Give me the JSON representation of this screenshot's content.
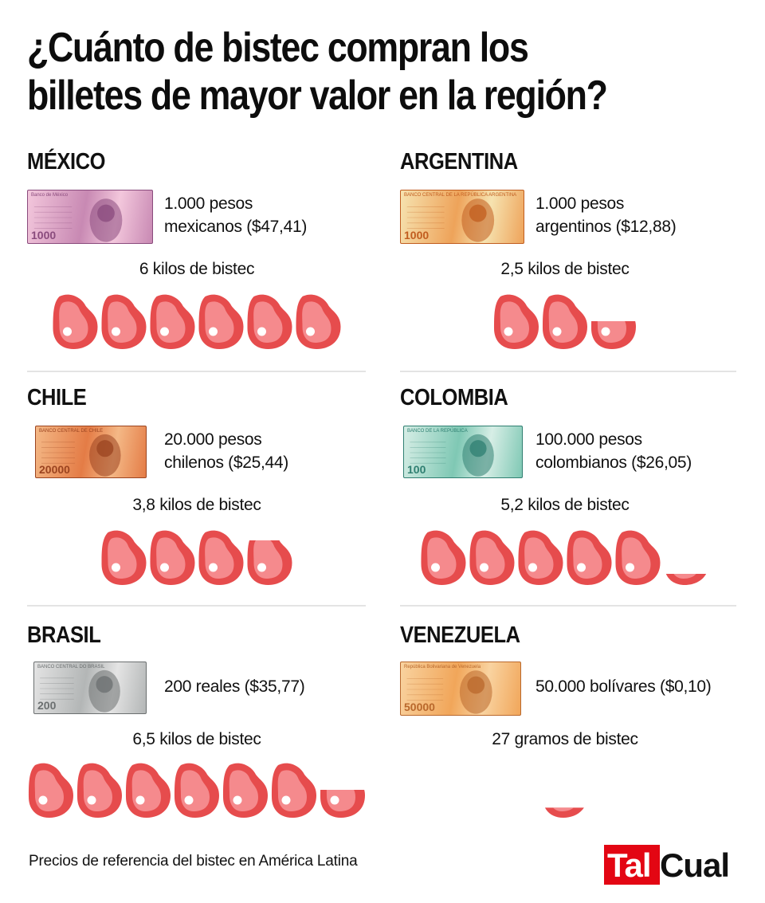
{
  "title_line1": "¿Cuánto de bistec compran los",
  "title_line2": "billetes de mayor valor en la región?",
  "countries": [
    {
      "name": "MÉXICO",
      "line1": "1.000 pesos",
      "line2": "mexicanos ($47,41)",
      "amount": "6 kilos de bistec",
      "kilos": 6,
      "note": {
        "label": "1000",
        "header": "Banco de México",
        "colors": [
          "#f3c7dc",
          "#c889b3",
          "#8a4b7d"
        ]
      }
    },
    {
      "name": "ARGENTINA",
      "line1": "1.000 pesos",
      "line2": "argentinos ($12,88)",
      "amount": "2,5 kilos de bistec",
      "kilos": 2.5,
      "note": {
        "label": "1000",
        "header": "BANCO CENTRAL DE LA REPÚBLICA ARGENTINA",
        "colors": [
          "#f6e3b0",
          "#eea35a",
          "#c15d1f"
        ]
      }
    },
    {
      "name": "CHILE",
      "line1": "20.000 pesos",
      "line2": "chilenos ($25,44)",
      "amount": "3,8 kilos de bistec",
      "kilos": 3.8,
      "note": {
        "label": "20000",
        "header": "BANCO CENTRAL DE CHILE",
        "colors": [
          "#f4b886",
          "#e47c46",
          "#9b4420"
        ]
      }
    },
    {
      "name": "COLOMBIA",
      "line1": "100.000 pesos",
      "line2": "colombianos ($26,05)",
      "amount": "5,2 kilos de bistec",
      "kilos": 5.2,
      "note": {
        "label": "100",
        "header": "BANCO DE LA REPÚBLICA",
        "colors": [
          "#d7eee6",
          "#7fc8b4",
          "#2f7f71"
        ]
      }
    },
    {
      "name": "BRASIL",
      "line1": "200 reales ($35,77)",
      "line2": "",
      "amount": "6,5 kilos de bistec",
      "kilos": 6.5,
      "note": {
        "label": "200",
        "header": "BANCO CENTRAL DO BRASIL",
        "colors": [
          "#e4e4e4",
          "#b3b6b6",
          "#6b6f70"
        ]
      }
    },
    {
      "name": "VENEZUELA",
      "line1": "50.000 bolívares ($0,10)",
      "line2": "",
      "amount": "27 gramos de bistec",
      "kilos": 0.027,
      "note": {
        "label": "50000",
        "header": "República Bolivariana de Venezuela",
        "colors": [
          "#f9d3a0",
          "#f1a65a",
          "#b9682c"
        ]
      }
    }
  ],
  "footer": "Precios de referencia del bistec en América Latina",
  "logo": {
    "part1": "Tal",
    "part2": "Cual"
  },
  "colors": {
    "steak_outer": "#e64c4d",
    "steak_inner": "#f58a8d",
    "bone": "#ffffff",
    "logo_red": "#e30613",
    "divider": "#e4e4e4"
  }
}
